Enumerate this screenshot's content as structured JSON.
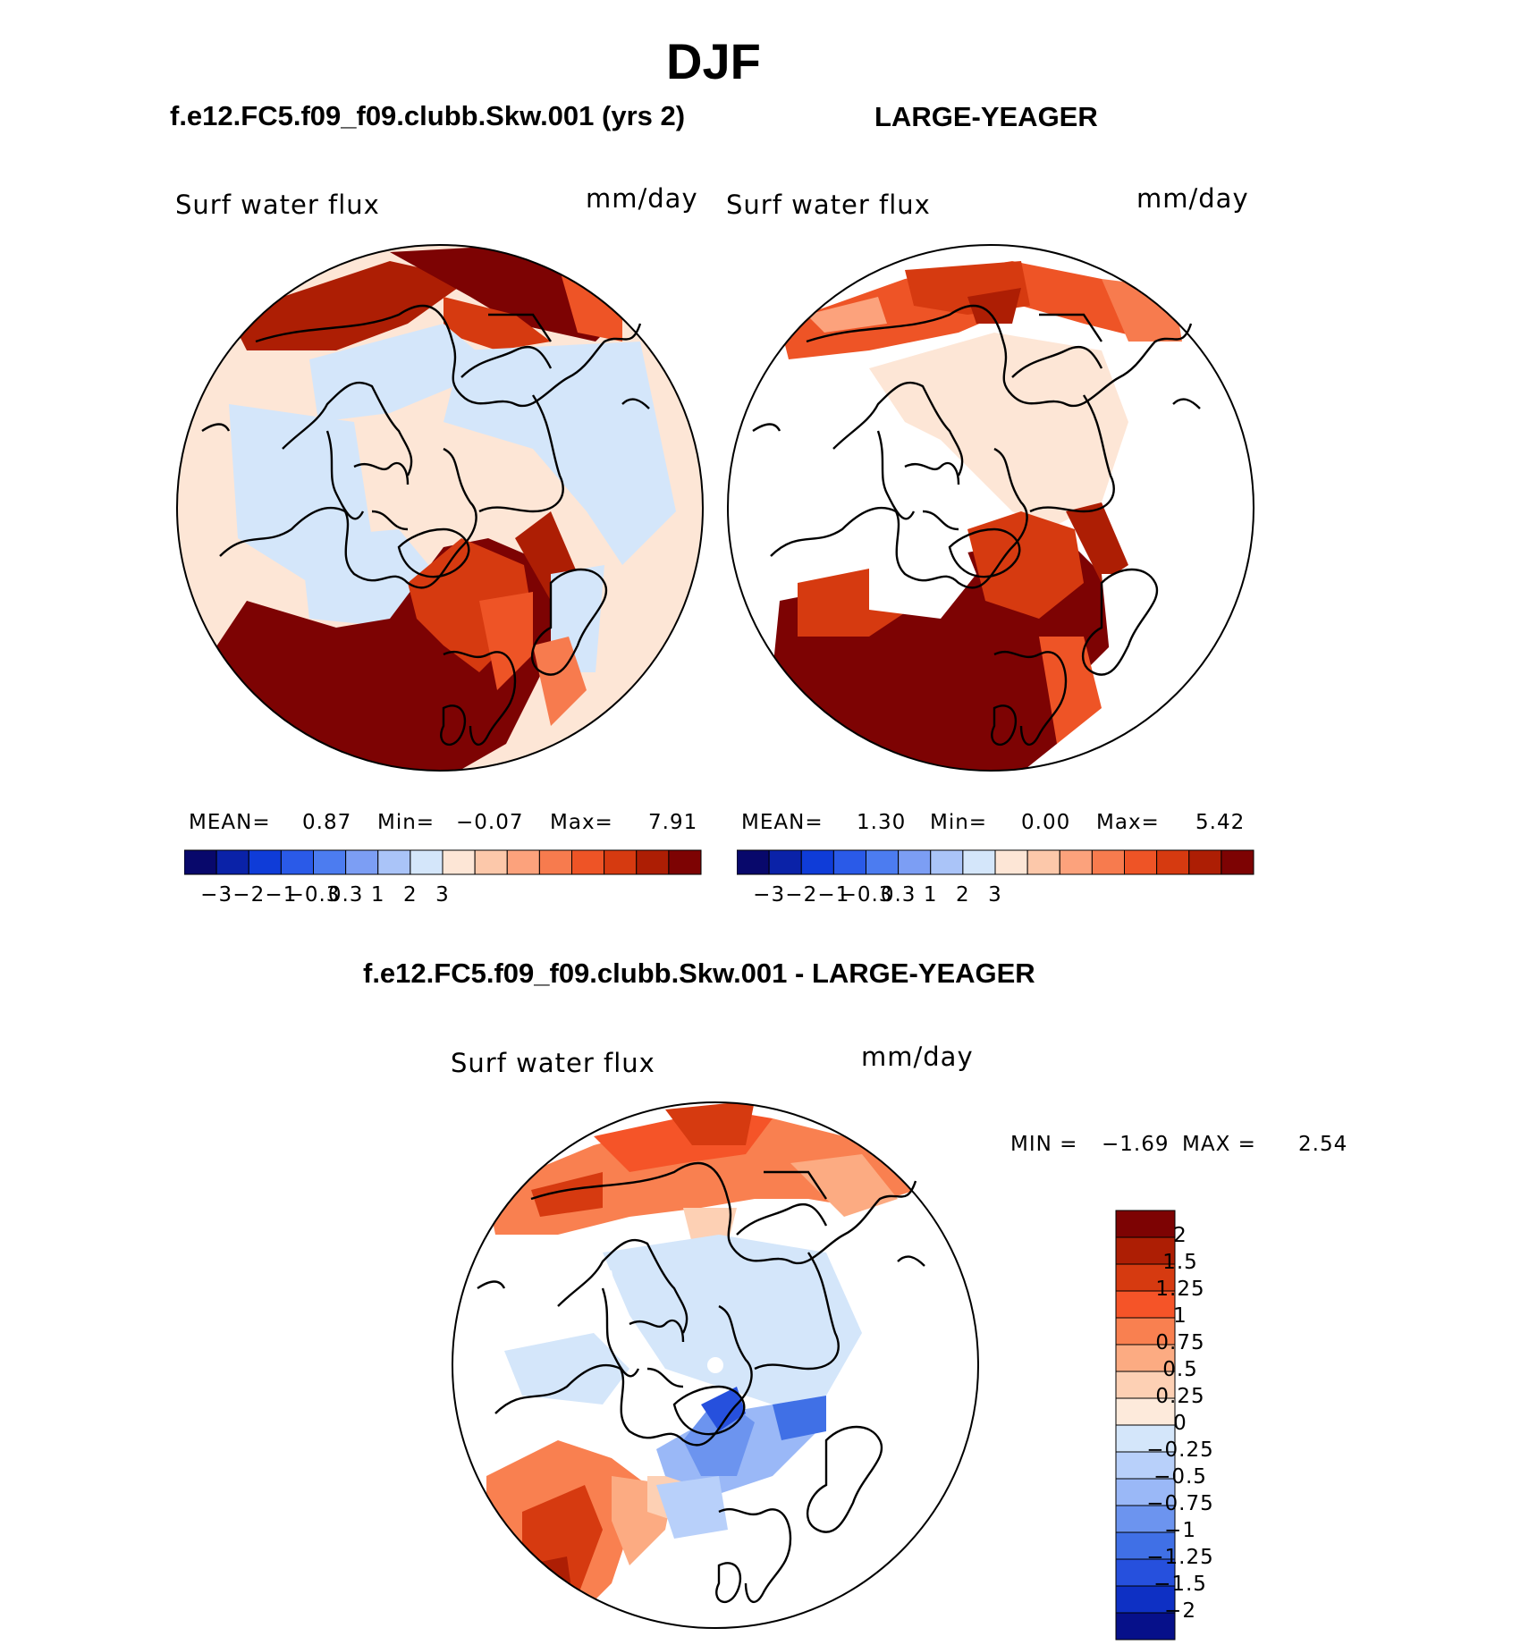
{
  "title": "DJF",
  "panels": [
    {
      "heading": "f.e12.FC5.f09_f09.clubb.Skw.001 (yrs 2)",
      "variable": "Surf water flux",
      "units": "mm/day",
      "stats": {
        "mean_label": "MEAN=",
        "mean": "0.87",
        "min_label": "Min=",
        "min": "−0.07",
        "max_label": "Max=",
        "max": "7.91"
      }
    },
    {
      "heading": "LARGE-YEAGER",
      "variable": "Surf water flux",
      "units": "mm/day",
      "stats": {
        "mean_label": "MEAN=",
        "mean": "1.30",
        "min_label": "Min=",
        "min": "0.00",
        "max_label": "Max=",
        "max": "5.42"
      }
    }
  ],
  "top_colorbar": {
    "colors": [
      "#08086b",
      "#0a22a8",
      "#0f3cd8",
      "#2a5ae8",
      "#4c7cf0",
      "#7c9ef4",
      "#aac4f8",
      "#d4e6fa",
      "#fde6d6",
      "#fcc8aa",
      "#fca27c",
      "#f77b4e",
      "#ee5426",
      "#d63a10",
      "#ad1e04",
      "#7d0303"
    ],
    "ticks": [
      "−3",
      "−2",
      "−1",
      "−0.3",
      "0.3",
      "1",
      "2",
      "3"
    ]
  },
  "diff_panel": {
    "heading": "f.e12.FC5.f09_f09.clubb.Skw.001 - LARGE-YEAGER",
    "variable": "Surf water flux",
    "units": "mm/day",
    "stats": {
      "min_label": "MIN =",
      "min": "−1.69",
      "max_label": "MAX =",
      "max": "2.54"
    },
    "colors": [
      "#7d0303",
      "#ad1e04",
      "#d63a10",
      "#f55428",
      "#f98050",
      "#fcab82",
      "#fdd0b4",
      "#fdeadb",
      "#d4e6fa",
      "#b8d0fa",
      "#9ab8f7",
      "#6c94ef",
      "#4070e6",
      "#2650dd",
      "#0e30c4",
      "#06108a"
    ],
    "ticks": [
      "2",
      "1.5",
      "1.25",
      "1",
      "0.75",
      "0.5",
      "0.25",
      "0",
      "−0.25",
      "−0.5",
      "−0.75",
      "−1",
      "−1.25",
      "−1.5",
      "−2"
    ]
  }
}
